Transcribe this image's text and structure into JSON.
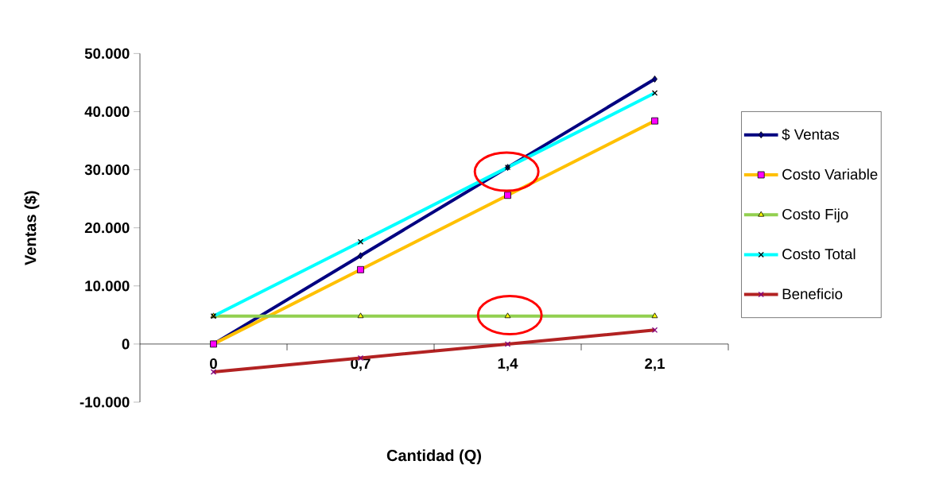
{
  "chart_data": {
    "type": "line",
    "xlabel": "Cantidad (Q)",
    "ylabel": "Ventas ($)",
    "categories": [
      "0",
      "0,7",
      "1,4",
      "2,1"
    ],
    "series": [
      {
        "name": "$ Ventas",
        "color": "#000080",
        "marker": "diamond",
        "colors": [
          "#000080",
          "#000080",
          "#000080",
          "#000080"
        ],
        "values": [
          0,
          15200,
          30400,
          45600
        ]
      },
      {
        "name": "Costo Variable",
        "color": "#ffc000",
        "marker": "square",
        "colors": [
          "#ff00ff",
          "#ff00ff",
          "#ff00ff",
          "#ff00ff"
        ],
        "values": [
          0,
          12800,
          25600,
          38400
        ]
      },
      {
        "name": "Costo Fijo",
        "color": "#92d050",
        "marker": "triangle",
        "colors": [
          "#ffff00",
          "#ffff00",
          "#ffff00",
          "#ffff00"
        ],
        "values": [
          4800,
          4800,
          4800,
          4800
        ]
      },
      {
        "name": "Costo Total",
        "color": "#00ffff",
        "marker": "cross",
        "colors": [
          "#000000",
          "#000000",
          "#000000",
          "#000000"
        ],
        "values": [
          4800,
          17600,
          30400,
          43200
        ]
      },
      {
        "name": "Beneficio",
        "color": "#b22222",
        "marker": "cross",
        "colors": [
          "#800080",
          "#800080",
          "#800080",
          "#800080"
        ],
        "values": [
          -4800,
          -2400,
          0,
          2400
        ]
      }
    ],
    "ylim": [
      -10000,
      50000
    ],
    "yticks": [
      {
        "value": -10000,
        "label": "-10.000"
      },
      0,
      {
        "value": 10000,
        "label": "10.000"
      },
      {
        "value": 20000,
        "label": "20.000"
      },
      {
        "value": 30000,
        "label": "30.000"
      },
      {
        "value": 40000,
        "label": "40.000"
      },
      {
        "value": 50000,
        "label": "50.000"
      }
    ],
    "grid": false,
    "legend": "right"
  }
}
